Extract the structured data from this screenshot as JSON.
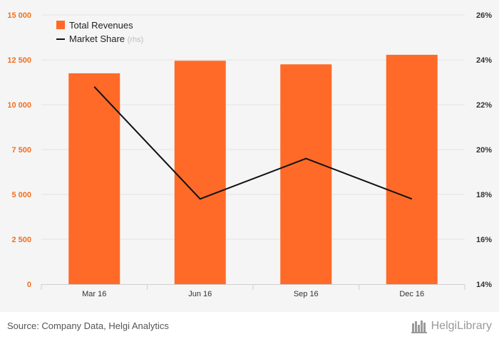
{
  "chart_data": {
    "type": "bar",
    "categories": [
      "Mar 16",
      "Jun 16",
      "Sep 16",
      "Dec 16"
    ],
    "series": [
      {
        "name": "Total Revenues",
        "type": "bar",
        "axis": "left",
        "values": [
          11750,
          12450,
          12250,
          12780
        ],
        "color": "#ff6a28"
      },
      {
        "name": "Market Share",
        "name_suffix": "(rhs)",
        "type": "line",
        "axis": "right",
        "values": [
          22.8,
          17.8,
          19.6,
          17.8
        ],
        "color": "#111111"
      }
    ],
    "y_left": {
      "min": 0,
      "max": 15000,
      "ticks": [
        0,
        2500,
        5000,
        7500,
        10000,
        12500,
        15000
      ],
      "tick_labels": [
        "0",
        "2 500",
        "5 000",
        "7 500",
        "10 000",
        "12 500",
        "15 000"
      ],
      "color": "#f07020"
    },
    "y_right": {
      "min": 14,
      "max": 26,
      "ticks": [
        14,
        16,
        18,
        20,
        22,
        24,
        26
      ],
      "tick_labels": [
        "14%",
        "16%",
        "18%",
        "20%",
        "22%",
        "24%",
        "26%"
      ]
    },
    "grid": true,
    "legend_position": "top-left"
  },
  "footer": {
    "source": "Source: Company Data, Helgi Analytics",
    "brand": "HelgiLibrary"
  }
}
